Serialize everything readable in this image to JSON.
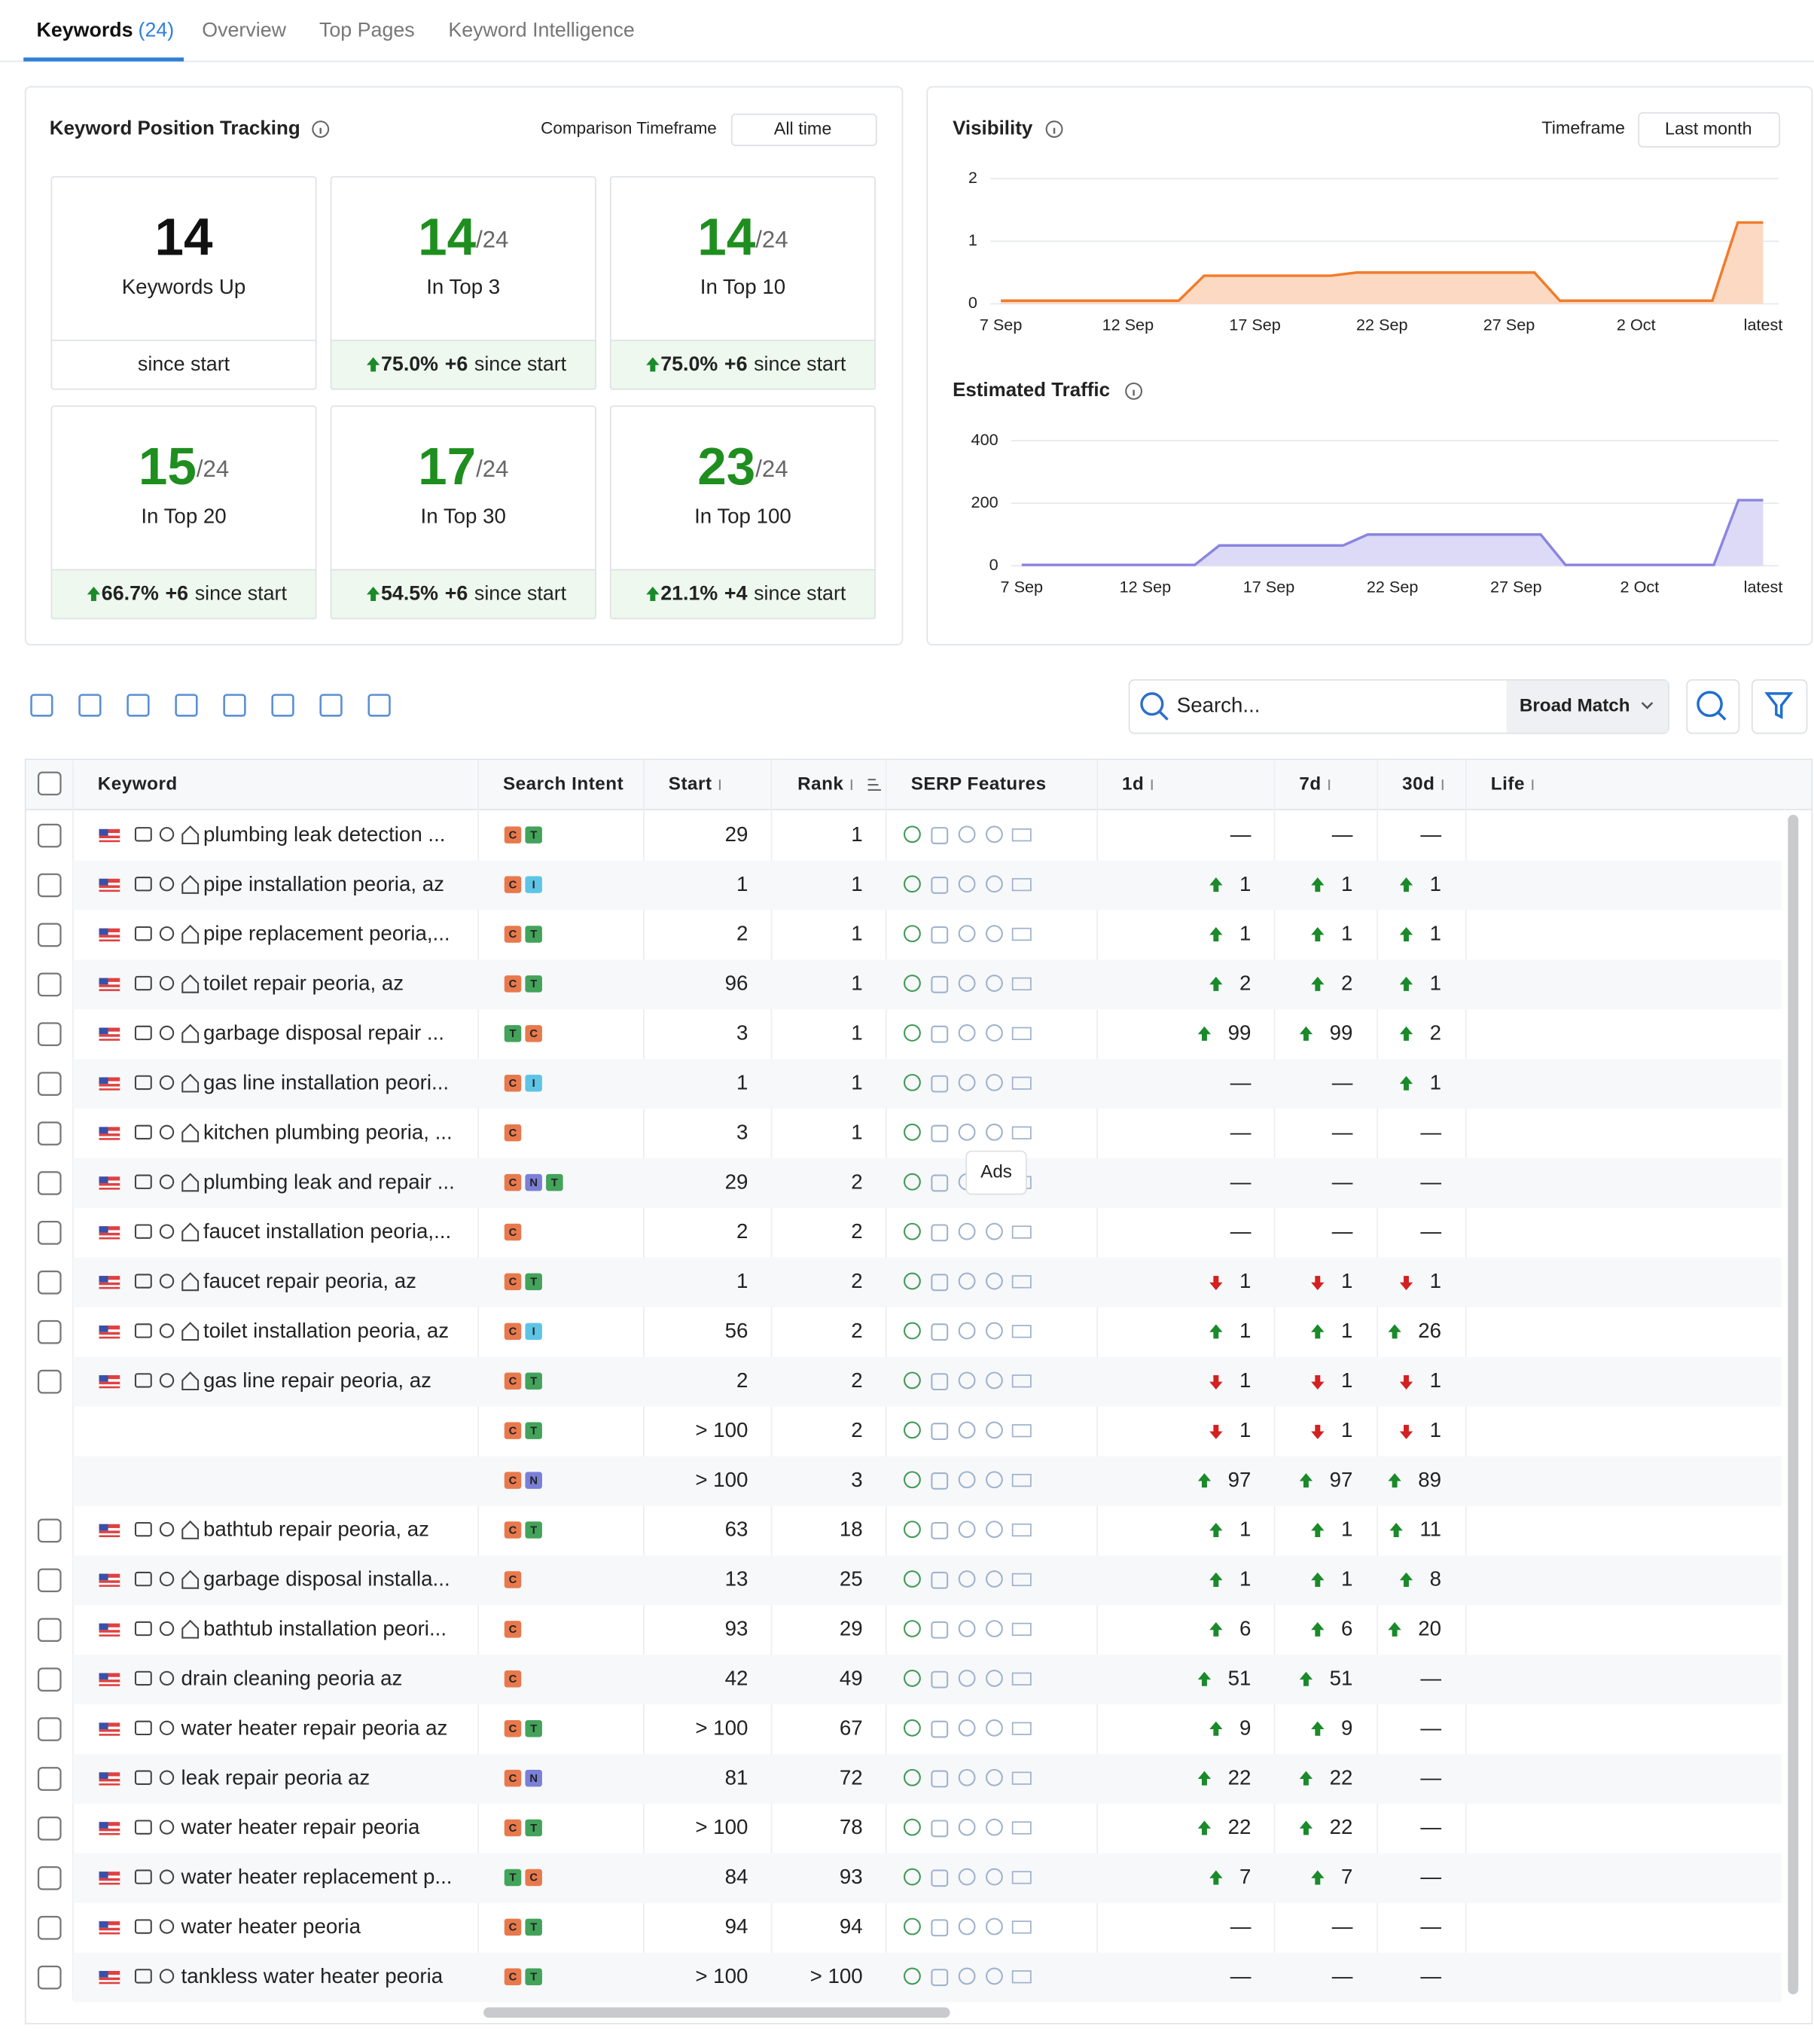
{
  "tabs": [
    {
      "label": "Keywords",
      "count": "(24)"
    },
    {
      "label": "Overview"
    },
    {
      "label": "Top Pages"
    },
    {
      "label": "Keyword Intelligence"
    }
  ],
  "tracking": {
    "title": "Keyword Position Tracking",
    "timeframe_label": "Comparison Timeframe",
    "timeframe": "All time",
    "cards": [
      {
        "value": "14",
        "label": "Keywords Up",
        "footer": "since start"
      },
      {
        "value": "14",
        "of": "/24",
        "label": "In Top 3",
        "pct": "75.0%",
        "delta": "+6",
        "footer": "since start"
      },
      {
        "value": "14",
        "of": "/24",
        "label": "In Top 10",
        "pct": "75.0%",
        "delta": "+6",
        "footer": "since start"
      },
      {
        "value": "15",
        "of": "/24",
        "label": "In Top 20",
        "pct": "66.7%",
        "delta": "+6",
        "footer": "since start"
      },
      {
        "value": "17",
        "of": "/24",
        "label": "In Top 30",
        "pct": "54.5%",
        "delta": "+6",
        "footer": "since start"
      },
      {
        "value": "23",
        "of": "/24",
        "label": "In Top 100",
        "pct": "21.1%",
        "delta": "+4",
        "footer": "since start"
      }
    ]
  },
  "visibility": {
    "title": "Visibility",
    "timeframe_label": "Timeframe",
    "timeframe": "Last month",
    "chart": {
      "type": "area",
      "color": "#f07b2c",
      "fill": "#fcd9c2",
      "categories": [
        "7 Sep",
        null,
        null,
        null,
        null,
        "12 Sep",
        null,
        null,
        null,
        null,
        "17 Sep",
        null,
        null,
        null,
        null,
        "22 Sep",
        null,
        null,
        null,
        null,
        "27 Sep",
        null,
        null,
        null,
        null,
        "2 Oct",
        null,
        null,
        null,
        null,
        "latest"
      ],
      "values": [
        0.05,
        0.05,
        0.05,
        0.05,
        0.05,
        0.05,
        0.05,
        0.05,
        0.45,
        0.45,
        0.45,
        0.45,
        0.45,
        0.45,
        0.5,
        0.5,
        0.5,
        0.5,
        0.5,
        0.5,
        0.5,
        0.5,
        0.05,
        0.05,
        0.05,
        0.05,
        0.05,
        0.05,
        0.05,
        1.3,
        1.3
      ],
      "ylim": [
        0,
        2
      ],
      "yticks": [
        0,
        1,
        2
      ],
      "grid": true
    }
  },
  "traffic": {
    "title": "Estimated Traffic",
    "chart": {
      "type": "area",
      "color": "#8a84e0",
      "fill": "#dcdaf6",
      "categories": [
        "7 Sep",
        null,
        null,
        null,
        null,
        "12 Sep",
        null,
        null,
        null,
        null,
        "17 Sep",
        null,
        null,
        null,
        null,
        "22 Sep",
        null,
        null,
        null,
        null,
        "27 Sep",
        null,
        null,
        null,
        null,
        "2 Oct",
        null,
        null,
        null,
        null,
        "latest"
      ],
      "values": [
        3,
        3,
        3,
        3,
        3,
        3,
        3,
        3,
        65,
        65,
        65,
        65,
        65,
        65,
        100,
        100,
        100,
        100,
        100,
        100,
        100,
        100,
        3,
        3,
        3,
        3,
        3,
        3,
        3,
        210,
        210
      ],
      "ylim": [
        0,
        400
      ],
      "yticks": [
        0,
        200,
        400
      ],
      "grid": true
    }
  },
  "toolbar": {
    "search_placeholder": "Search...",
    "match": "Broad Match"
  },
  "tooltip": "Ads",
  "table": {
    "columns": [
      "Keyword",
      "Search Intent",
      "Start",
      "Rank",
      "SERP Features",
      "1d",
      "7d",
      "30d",
      "Life"
    ],
    "intent_colors": {
      "C": "#e8794d",
      "T": "#43a35a",
      "I": "#5ec4e6",
      "N": "#7a7fd8"
    },
    "rows": [
      {
        "keyword": "plumbing leak detection ...",
        "local": true,
        "intent": [
          "C",
          "T"
        ],
        "start": "29",
        "rank": "1",
        "d1": {
          "text": "—"
        },
        "d7": {
          "text": "—"
        },
        "d30": {
          "text": "—"
        }
      },
      {
        "keyword": "pipe installation peoria, az",
        "local": true,
        "intent": [
          "C",
          "I"
        ],
        "start": "1",
        "rank": "1",
        "d1": {
          "dir": "up",
          "text": "1"
        },
        "d7": {
          "dir": "up",
          "text": "1"
        },
        "d30": {
          "dir": "up",
          "text": "1"
        }
      },
      {
        "keyword": "pipe replacement peoria,...",
        "local": true,
        "intent": [
          "C",
          "T"
        ],
        "start": "2",
        "rank": "1",
        "d1": {
          "dir": "up",
          "text": "1"
        },
        "d7": {
          "dir": "up",
          "text": "1"
        },
        "d30": {
          "dir": "up",
          "text": "1"
        }
      },
      {
        "keyword": "toilet repair peoria, az",
        "local": true,
        "intent": [
          "C",
          "T"
        ],
        "start": "96",
        "rank": "1",
        "d1": {
          "dir": "up",
          "text": "2"
        },
        "d7": {
          "dir": "up",
          "text": "2"
        },
        "d30": {
          "dir": "up",
          "text": "1"
        }
      },
      {
        "keyword": "garbage disposal repair ...",
        "local": true,
        "intent": [
          "T",
          "C"
        ],
        "start": "3",
        "rank": "1",
        "d1": {
          "dir": "up",
          "text": "99"
        },
        "d7": {
          "dir": "up",
          "text": "99"
        },
        "d30": {
          "dir": "up",
          "text": "2"
        }
      },
      {
        "keyword": "gas line installation peori...",
        "local": true,
        "intent": [
          "C",
          "I"
        ],
        "start": "1",
        "rank": "1",
        "d1": {
          "text": "—"
        },
        "d7": {
          "text": "—"
        },
        "d30": {
          "dir": "up",
          "text": "1"
        }
      },
      {
        "keyword": "kitchen plumbing peoria, ...",
        "local": true,
        "intent": [
          "C"
        ],
        "start": "3",
        "rank": "1",
        "d1": {
          "text": "—"
        },
        "d7": {
          "text": "—"
        },
        "d30": {
          "text": "—"
        }
      },
      {
        "keyword": "plumbing leak and repair ...",
        "local": true,
        "intent": [
          "C",
          "N",
          "T"
        ],
        "start": "29",
        "rank": "2",
        "d1": {
          "text": "—"
        },
        "d7": {
          "text": "—"
        },
        "d30": {
          "text": "—"
        }
      },
      {
        "keyword": "faucet installation peoria,...",
        "local": true,
        "intent": [
          "C"
        ],
        "start": "2",
        "rank": "2",
        "d1": {
          "text": "—"
        },
        "d7": {
          "text": "—"
        },
        "d30": {
          "text": "—"
        }
      },
      {
        "keyword": "faucet repair peoria, az",
        "local": true,
        "intent": [
          "C",
          "T"
        ],
        "start": "1",
        "rank": "2",
        "d1": {
          "dir": "down",
          "text": "1"
        },
        "d7": {
          "dir": "down",
          "text": "1"
        },
        "d30": {
          "dir": "down",
          "text": "1"
        }
      },
      {
        "keyword": "toilet installation peoria, az",
        "local": true,
        "intent": [
          "C",
          "I"
        ],
        "start": "56",
        "rank": "2",
        "d1": {
          "dir": "up",
          "text": "1"
        },
        "d7": {
          "dir": "up",
          "text": "1"
        },
        "d30": {
          "dir": "up",
          "text": "26"
        }
      },
      {
        "keyword": "gas line repair peoria, az",
        "local": true,
        "intent": [
          "C",
          "T"
        ],
        "start": "2",
        "rank": "2",
        "d1": {
          "dir": "down",
          "text": "1"
        },
        "d7": {
          "dir": "down",
          "text": "1"
        },
        "d30": {
          "dir": "down",
          "text": "1"
        }
      },
      {
        "keyword": null,
        "intent": [
          "C",
          "T"
        ],
        "start": "> 100",
        "rank": "2",
        "d1": {
          "dir": "down",
          "text": "1"
        },
        "d7": {
          "dir": "down",
          "text": "1"
        },
        "d30": {
          "dir": "down",
          "text": "1"
        }
      },
      {
        "keyword": null,
        "intent": [
          "C",
          "N"
        ],
        "start": "> 100",
        "rank": "3",
        "d1": {
          "dir": "up",
          "text": "97"
        },
        "d7": {
          "dir": "up",
          "text": "97"
        },
        "d30": {
          "dir": "up",
          "text": "89"
        }
      },
      {
        "keyword": "bathtub repair peoria, az",
        "local": true,
        "intent": [
          "C",
          "T"
        ],
        "start": "63",
        "rank": "18",
        "d1": {
          "dir": "up",
          "text": "1"
        },
        "d7": {
          "dir": "up",
          "text": "1"
        },
        "d30": {
          "dir": "up",
          "text": "11"
        }
      },
      {
        "keyword": "garbage disposal installa...",
        "local": true,
        "intent": [
          "C"
        ],
        "start": "13",
        "rank": "25",
        "d1": {
          "dir": "up",
          "text": "1"
        },
        "d7": {
          "dir": "up",
          "text": "1"
        },
        "d30": {
          "dir": "up",
          "text": "8"
        }
      },
      {
        "keyword": "bathtub installation peori...",
        "local": true,
        "intent": [
          "C"
        ],
        "start": "93",
        "rank": "29",
        "d1": {
          "dir": "up",
          "text": "6"
        },
        "d7": {
          "dir": "up",
          "text": "6"
        },
        "d30": {
          "dir": "up",
          "text": "20"
        }
      },
      {
        "keyword": "drain cleaning peoria az",
        "local": false,
        "intent": [
          "C"
        ],
        "start": "42",
        "rank": "49",
        "d1": {
          "dir": "up",
          "text": "51"
        },
        "d7": {
          "dir": "up",
          "text": "51"
        },
        "d30": {
          "text": "—"
        }
      },
      {
        "keyword": "water heater repair peoria az",
        "local": false,
        "intent": [
          "C",
          "T"
        ],
        "start": "> 100",
        "rank": "67",
        "d1": {
          "dir": "up",
          "text": "9"
        },
        "d7": {
          "dir": "up",
          "text": "9"
        },
        "d30": {
          "text": "—"
        }
      },
      {
        "keyword": "leak repair peoria az",
        "local": false,
        "intent": [
          "C",
          "N"
        ],
        "start": "81",
        "rank": "72",
        "d1": {
          "dir": "up",
          "text": "22"
        },
        "d7": {
          "dir": "up",
          "text": "22"
        },
        "d30": {
          "text": "—"
        }
      },
      {
        "keyword": "water heater repair peoria",
        "local": false,
        "intent": [
          "C",
          "T"
        ],
        "start": "> 100",
        "rank": "78",
        "d1": {
          "dir": "up",
          "text": "22"
        },
        "d7": {
          "dir": "up",
          "text": "22"
        },
        "d30": {
          "text": "—"
        }
      },
      {
        "keyword": "water heater replacement p...",
        "local": false,
        "intent": [
          "T",
          "C"
        ],
        "start": "84",
        "rank": "93",
        "d1": {
          "dir": "up",
          "text": "7"
        },
        "d7": {
          "dir": "up",
          "text": "7"
        },
        "d30": {
          "text": "—"
        }
      },
      {
        "keyword": "water heater peoria",
        "local": false,
        "intent": [
          "C",
          "T"
        ],
        "start": "94",
        "rank": "94",
        "d1": {
          "text": "—"
        },
        "d7": {
          "text": "—"
        },
        "d30": {
          "text": "—"
        }
      },
      {
        "keyword": "tankless water heater peoria",
        "local": false,
        "intent": [
          "C",
          "T"
        ],
        "start": "> 100",
        "rank": "> 100",
        "d1": {
          "text": "—"
        },
        "d7": {
          "text": "—"
        },
        "d30": {
          "text": "—"
        }
      }
    ]
  }
}
